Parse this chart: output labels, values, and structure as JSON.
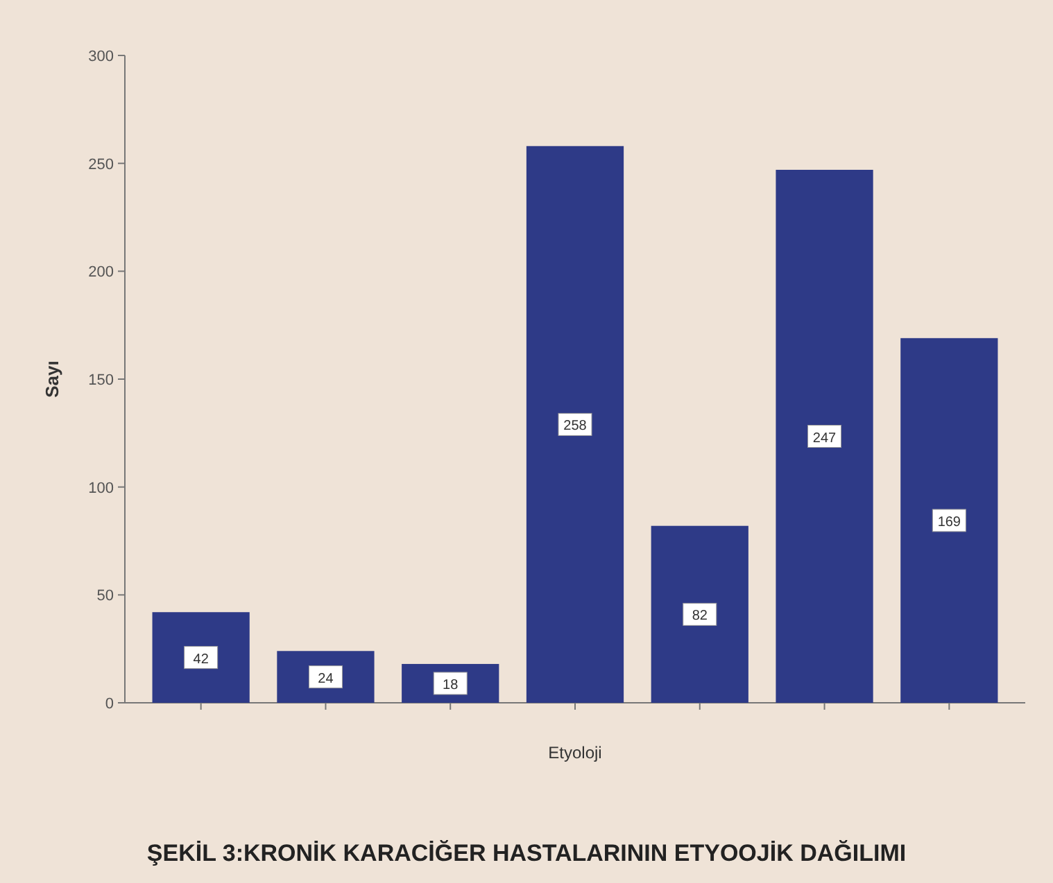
{
  "chart_data": {
    "type": "bar",
    "title": "ŞEKİL 3:KRONİK KARACİĞER HASTALARININ ETYOOJİK DAĞILIMI",
    "xlabel": "Etyoloji",
    "ylabel": "Sayı",
    "categories": [
      null,
      null,
      null,
      null,
      null,
      null,
      null
    ],
    "values": [
      42,
      24,
      18,
      258,
      82,
      247,
      169
    ],
    "color": "#2e3a87",
    "ylim": [
      0,
      300
    ],
    "yticks": [
      0,
      50,
      100,
      150,
      200,
      250,
      300
    ],
    "data_labels": true
  }
}
